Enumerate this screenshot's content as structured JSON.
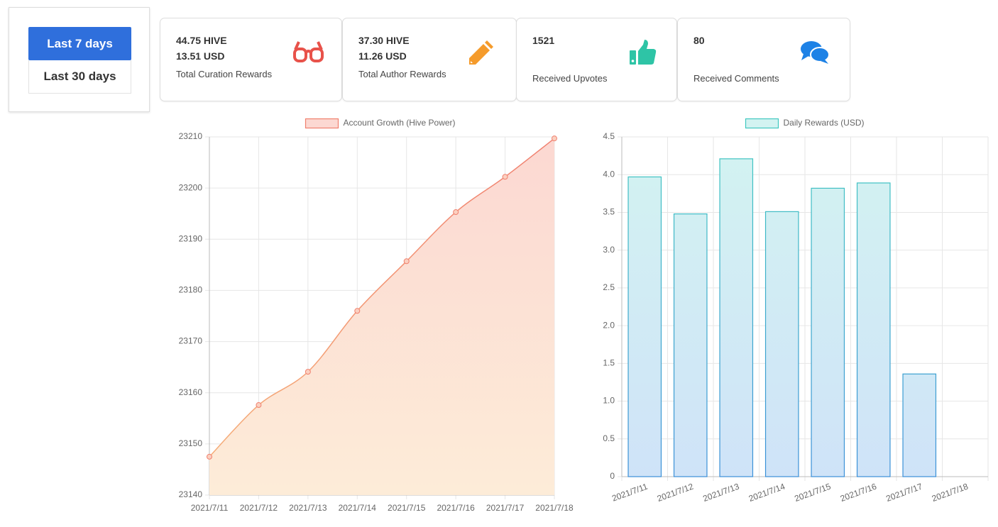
{
  "buttons": [
    "Last 7 days",
    "Last 30 days"
  ],
  "cards": [
    {
      "lines": [
        "44.75 HIVE",
        "13.51 USD"
      ],
      "label": "Total Curation Rewards"
    },
    {
      "lines": [
        "37.30 HIVE",
        "11.26 USD"
      ],
      "label": "Total Author Rewards"
    },
    {
      "lines": [
        "1521"
      ],
      "label": "Received Upvotes"
    },
    {
      "lines": [
        "80"
      ],
      "label": "Received Comments"
    }
  ],
  "chart_data": [
    {
      "type": "line",
      "categories": [
        "2021/7/11",
        "2021/7/12",
        "2021/7/13",
        "2021/7/14",
        "2021/7/15",
        "2021/7/16",
        "2021/7/17",
        "2021/7/18"
      ],
      "series": [
        {
          "name": "Account Growth (Hive Power)",
          "color": "#f0806e",
          "values": [
            23147.5,
            23157.6,
            23164.1,
            23176.0,
            23185.7,
            23195.3,
            23202.2,
            23209.7
          ]
        }
      ],
      "ylim": [
        23140,
        23210
      ],
      "yticks": [
        23140,
        23150,
        23160,
        23170,
        23180,
        23190,
        23200,
        23210
      ],
      "grid": true
    },
    {
      "type": "bar",
      "categories": [
        "2021/7/11",
        "2021/7/12",
        "2021/7/13",
        "2021/7/14",
        "2021/7/15",
        "2021/7/16",
        "2021/7/17",
        "2021/7/18"
      ],
      "series": [
        {
          "name": "Daily Rewards (USD)",
          "color": "#40c8c0",
          "values": [
            3.97,
            3.48,
            4.21,
            3.51,
            3.82,
            3.89,
            1.36,
            0
          ]
        }
      ],
      "ylim": [
        0,
        4.5
      ],
      "yticks": [
        0,
        0.5,
        {
          "value": 1,
          "label": "1.0"
        },
        1.5,
        {
          "value": 2,
          "label": "2.0"
        },
        2.5,
        {
          "value": 3,
          "label": "3.0"
        },
        3.5,
        {
          "value": 4,
          "label": "4.0"
        },
        4.5
      ],
      "grid": true
    }
  ]
}
